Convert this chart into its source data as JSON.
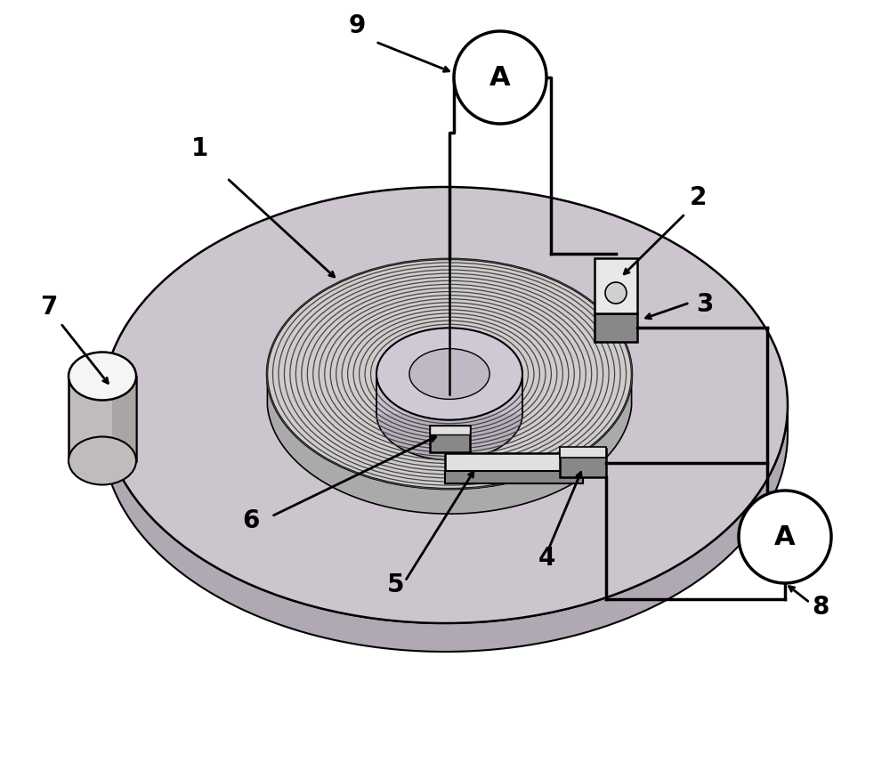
{
  "background_color": "#ffffff",
  "label_fontsize": 20,
  "label_fontweight": "bold",
  "ammeter_fontsize": 22,
  "ammeter_fontweight": "bold",
  "line_color": "#000000",
  "disk_color_light": "#cdc5ce",
  "disk_color_dark": "#a098a4",
  "disk_rim_color": "#b0a8b2",
  "coil_bg": "#d0cccc",
  "coil_line": "#444444",
  "hole_color": "#c8c0cc",
  "hole_inner_color": "#dcd8de",
  "cylinder_top": "#f5f5f5",
  "cylinder_side": "#c0bcbc",
  "cylinder_shade": "#908888",
  "switch_dark": "#888888",
  "switch_light": "#e0e0e0",
  "lead_dark": "#888888",
  "lead_light": "#e8e8e8"
}
